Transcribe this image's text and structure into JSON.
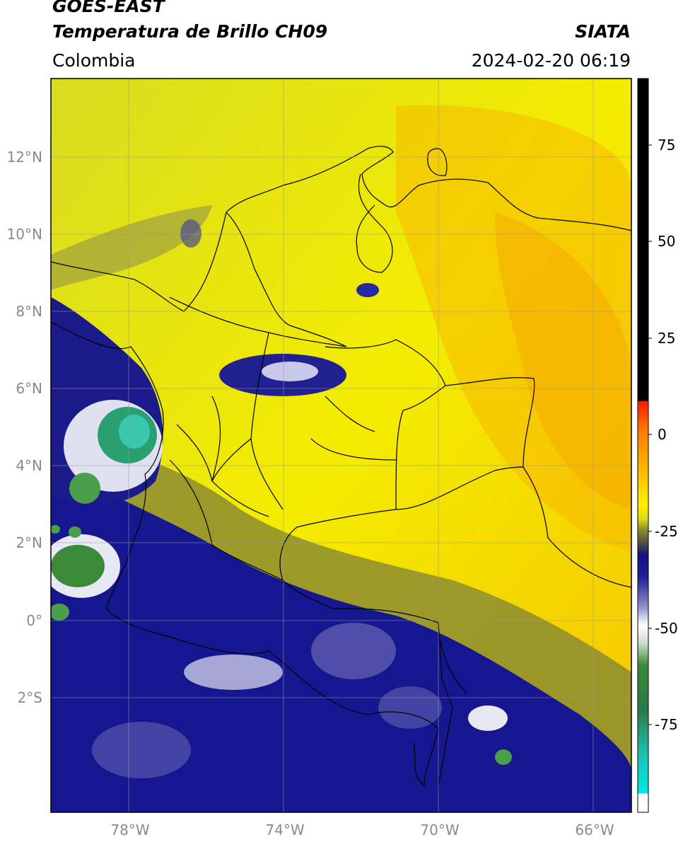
{
  "header": {
    "satellite": "GOES-EAST",
    "product": "Temperatura de Brillo CH09",
    "region": "Colombia",
    "source": "SIATA",
    "datetime": "2024-02-20 06:19"
  },
  "map": {
    "lat_ticks": [
      "12°N",
      "10°N",
      "8°N",
      "6°N",
      "4°N",
      "2°N",
      "0°",
      "2°S"
    ],
    "lon_ticks": [
      "78°W",
      "74°W",
      "70°W",
      "66°W"
    ]
  },
  "colorbar": {
    "ticks": [
      "75",
      "50",
      "25",
      "0",
      "-25",
      "-50",
      "-75"
    ],
    "colors": {
      "black": "#000000",
      "red": "#e8200a",
      "orange": "#f5a000",
      "yellow": "#f7f000",
      "olive": "#8c8c30",
      "navy": "#10107e",
      "white": "#ffffff",
      "green": "#2d8a2d",
      "cyan": "#00e0e0"
    }
  }
}
